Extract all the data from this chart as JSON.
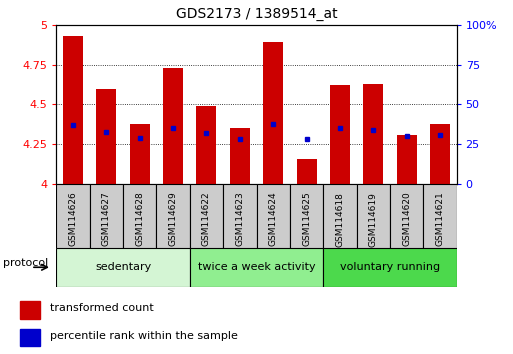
{
  "title": "GDS2173 / 1389514_at",
  "samples": [
    "GSM114626",
    "GSM114627",
    "GSM114628",
    "GSM114629",
    "GSM114622",
    "GSM114623",
    "GSM114624",
    "GSM114625",
    "GSM114618",
    "GSM114619",
    "GSM114620",
    "GSM114621"
  ],
  "red_values": [
    4.93,
    4.6,
    4.38,
    4.73,
    4.49,
    4.35,
    4.89,
    4.16,
    4.62,
    4.63,
    4.31,
    4.38
  ],
  "blue_values": [
    4.37,
    4.33,
    4.29,
    4.35,
    4.32,
    4.28,
    4.38,
    4.28,
    4.35,
    4.34,
    4.3,
    4.31
  ],
  "groups": [
    {
      "label": "sedentary",
      "start": 0,
      "end": 3,
      "color": "#d4f5d4"
    },
    {
      "label": "twice a week activity",
      "start": 4,
      "end": 7,
      "color": "#90ee90"
    },
    {
      "label": "voluntary running",
      "start": 8,
      "end": 11,
      "color": "#4cd94c"
    }
  ],
  "ylim": [
    4.0,
    5.0
  ],
  "yticks_left": [
    4.0,
    4.25,
    4.5,
    4.75,
    5.0
  ],
  "yticks_right_pct": [
    0,
    25,
    50,
    75,
    100
  ],
  "bar_color": "#cc0000",
  "marker_color": "#0000cc",
  "bar_width": 0.6,
  "sample_box_color": "#cccccc",
  "background_color": "#ffffff",
  "protocol_label": "protocol",
  "legend_red": "transformed count",
  "legend_blue": "percentile rank within the sample"
}
